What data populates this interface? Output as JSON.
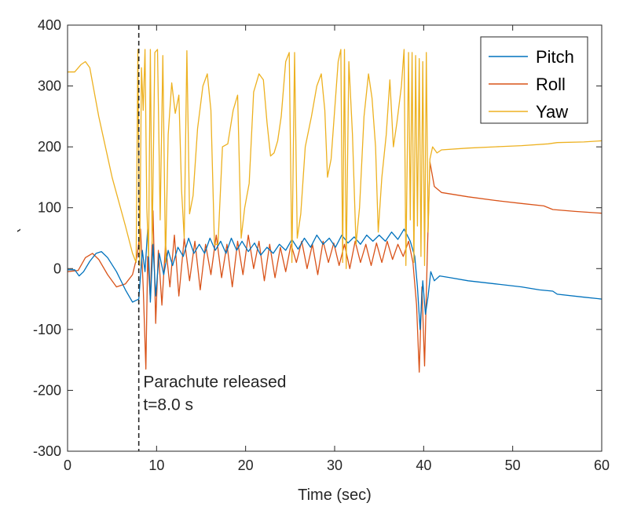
{
  "chart_data": {
    "type": "line",
    "title": "",
    "xlabel": "Time (sec)",
    "ylabel": "Angle (deg)",
    "xlim": [
      0,
      60
    ],
    "ylim": [
      -300,
      400
    ],
    "xticks": [
      0,
      10,
      20,
      30,
      40,
      50,
      60
    ],
    "yticks": [
      -300,
      -200,
      -100,
      0,
      100,
      200,
      300,
      400
    ],
    "xtick_labels": [
      "0",
      "10",
      "20",
      "30",
      "40",
      "50",
      "60"
    ],
    "ytick_labels": [
      "-300",
      "-200",
      "-100",
      "0",
      "100",
      "200",
      "300",
      "400"
    ],
    "grid": false,
    "legend_position": "top-right",
    "series": [
      {
        "name": "Pitch",
        "color": "#0072BD",
        "points": [
          [
            0,
            -2
          ],
          [
            0.8,
            -2
          ],
          [
            1.3,
            -12
          ],
          [
            1.8,
            -5
          ],
          [
            2.5,
            12
          ],
          [
            3.2,
            25
          ],
          [
            3.8,
            28
          ],
          [
            4.5,
            18
          ],
          [
            5.5,
            -5
          ],
          [
            6.5,
            -35
          ],
          [
            7.3,
            -55
          ],
          [
            8,
            -50
          ],
          [
            8.4,
            30
          ],
          [
            8.7,
            -5
          ],
          [
            9.0,
            65
          ],
          [
            9.3,
            -55
          ],
          [
            9.6,
            40
          ],
          [
            9.9,
            -45
          ],
          [
            10.3,
            25
          ],
          [
            10.8,
            -10
          ],
          [
            11.3,
            30
          ],
          [
            11.8,
            5
          ],
          [
            12.4,
            35
          ],
          [
            13,
            20
          ],
          [
            13.6,
            50
          ],
          [
            14.2,
            25
          ],
          [
            14.8,
            40
          ],
          [
            15.4,
            25
          ],
          [
            16,
            50
          ],
          [
            16.6,
            30
          ],
          [
            17.2,
            45
          ],
          [
            17.8,
            25
          ],
          [
            18.4,
            50
          ],
          [
            19,
            30
          ],
          [
            19.6,
            45
          ],
          [
            20.3,
            28
          ],
          [
            21,
            42
          ],
          [
            21.7,
            22
          ],
          [
            22.4,
            35
          ],
          [
            23.1,
            25
          ],
          [
            23.8,
            40
          ],
          [
            24.5,
            30
          ],
          [
            25.2,
            48
          ],
          [
            25.9,
            32
          ],
          [
            26.6,
            50
          ],
          [
            27.3,
            35
          ],
          [
            28,
            55
          ],
          [
            28.7,
            40
          ],
          [
            29.4,
            50
          ],
          [
            30.1,
            35
          ],
          [
            30.8,
            55
          ],
          [
            31.5,
            42
          ],
          [
            32.2,
            52
          ],
          [
            32.9,
            40
          ],
          [
            33.6,
            55
          ],
          [
            34.3,
            45
          ],
          [
            35,
            55
          ],
          [
            35.7,
            45
          ],
          [
            36.4,
            60
          ],
          [
            37.1,
            48
          ],
          [
            37.8,
            65
          ],
          [
            38.5,
            45
          ],
          [
            39,
            20
          ],
          [
            39.3,
            -30
          ],
          [
            39.6,
            -100
          ],
          [
            39.9,
            -20
          ],
          [
            40.2,
            -75
          ],
          [
            40.5,
            -45
          ],
          [
            40.8,
            -5
          ],
          [
            41.2,
            -20
          ],
          [
            41.8,
            -12
          ],
          [
            43,
            -15
          ],
          [
            45,
            -20
          ],
          [
            48,
            -25
          ],
          [
            51,
            -30
          ],
          [
            53,
            -35
          ],
          [
            54.5,
            -37
          ],
          [
            55,
            -42
          ],
          [
            58,
            -47
          ],
          [
            60,
            -50
          ]
        ]
      },
      {
        "name": "Roll",
        "color": "#D95319",
        "points": [
          [
            0,
            -5
          ],
          [
            1.2,
            -3
          ],
          [
            2,
            18
          ],
          [
            2.8,
            25
          ],
          [
            3.5,
            15
          ],
          [
            4.5,
            -10
          ],
          [
            5.5,
            -30
          ],
          [
            6.5,
            -25
          ],
          [
            7.3,
            -10
          ],
          [
            7.8,
            20
          ],
          [
            8.2,
            65
          ],
          [
            8.5,
            -30
          ],
          [
            8.8,
            -165
          ],
          [
            9.0,
            20
          ],
          [
            9.3,
            -50
          ],
          [
            9.6,
            95
          ],
          [
            9.9,
            -90
          ],
          [
            10.2,
            30
          ],
          [
            10.6,
            -60
          ],
          [
            11,
            40
          ],
          [
            11.5,
            -30
          ],
          [
            12,
            55
          ],
          [
            12.5,
            -45
          ],
          [
            13.1,
            50
          ],
          [
            13.7,
            -20
          ],
          [
            14.3,
            45
          ],
          [
            14.9,
            -35
          ],
          [
            15.5,
            40
          ],
          [
            16.1,
            -10
          ],
          [
            16.7,
            55
          ],
          [
            17.3,
            -15
          ],
          [
            17.9,
            40
          ],
          [
            18.5,
            -30
          ],
          [
            19.1,
            45
          ],
          [
            19.7,
            -10
          ],
          [
            20.3,
            55
          ],
          [
            20.9,
            0
          ],
          [
            21.5,
            45
          ],
          [
            22.1,
            -20
          ],
          [
            22.7,
            40
          ],
          [
            23.3,
            -15
          ],
          [
            23.9,
            35
          ],
          [
            24.5,
            -5
          ],
          [
            25.1,
            40
          ],
          [
            25.7,
            10
          ],
          [
            26.3,
            45
          ],
          [
            26.9,
            0
          ],
          [
            27.5,
            40
          ],
          [
            28.1,
            -10
          ],
          [
            28.7,
            45
          ],
          [
            29.3,
            10
          ],
          [
            29.9,
            42
          ],
          [
            30.5,
            5
          ],
          [
            31.1,
            40
          ],
          [
            31.7,
            0
          ],
          [
            32.3,
            45
          ],
          [
            32.9,
            10
          ],
          [
            33.5,
            40
          ],
          [
            34.1,
            5
          ],
          [
            34.7,
            42
          ],
          [
            35.3,
            10
          ],
          [
            35.9,
            45
          ],
          [
            36.5,
            15
          ],
          [
            37.1,
            40
          ],
          [
            37.7,
            20
          ],
          [
            38.3,
            45
          ],
          [
            38.8,
            10
          ],
          [
            39.2,
            -60
          ],
          [
            39.5,
            -170
          ],
          [
            39.8,
            -30
          ],
          [
            40.1,
            -160
          ],
          [
            40.4,
            20
          ],
          [
            40.7,
            175
          ],
          [
            41.2,
            135
          ],
          [
            42,
            125
          ],
          [
            45,
            118
          ],
          [
            48,
            112
          ],
          [
            51,
            107
          ],
          [
            53.5,
            103
          ],
          [
            54.5,
            97
          ],
          [
            57,
            94
          ],
          [
            60,
            91
          ]
        ]
      },
      {
        "name": "Yaw",
        "color": "#EDB120",
        "points": [
          [
            0,
            323
          ],
          [
            0.8,
            323
          ],
          [
            1.5,
            335
          ],
          [
            2.0,
            340
          ],
          [
            2.5,
            330
          ],
          [
            3.5,
            250
          ],
          [
            5,
            150
          ],
          [
            6.5,
            70
          ],
          [
            7.3,
            25
          ],
          [
            7.7,
            10
          ],
          [
            7.9,
            360
          ],
          [
            8.1,
            5
          ],
          [
            8.3,
            330
          ],
          [
            8.5,
            260
          ],
          [
            8.7,
            360
          ],
          [
            8.9,
            100
          ],
          [
            9.1,
            20
          ],
          [
            9.3,
            360
          ],
          [
            9.5,
            40
          ],
          [
            9.8,
            355
          ],
          [
            10.1,
            360
          ],
          [
            10.4,
            80
          ],
          [
            10.7,
            350
          ],
          [
            11,
            10
          ],
          [
            11.3,
            220
          ],
          [
            11.7,
            305
          ],
          [
            12.1,
            255
          ],
          [
            12.5,
            285
          ],
          [
            12.8,
            130
          ],
          [
            13.1,
            50
          ],
          [
            13.4,
            358
          ],
          [
            13.7,
            90
          ],
          [
            14.1,
            120
          ],
          [
            14.6,
            230
          ],
          [
            15.2,
            300
          ],
          [
            15.7,
            320
          ],
          [
            16.1,
            260
          ],
          [
            16.5,
            40
          ],
          [
            16.9,
            40
          ],
          [
            17.4,
            200
          ],
          [
            18,
            205
          ],
          [
            18.6,
            260
          ],
          [
            19.1,
            285
          ],
          [
            19.5,
            50
          ],
          [
            19.9,
            100
          ],
          [
            20.4,
            140
          ],
          [
            20.9,
            290
          ],
          [
            21.5,
            320
          ],
          [
            22,
            310
          ],
          [
            22.4,
            240
          ],
          [
            22.8,
            185
          ],
          [
            23.2,
            190
          ],
          [
            23.6,
            210
          ],
          [
            24,
            250
          ],
          [
            24.5,
            340
          ],
          [
            24.9,
            355
          ],
          [
            25.2,
            10
          ],
          [
            25.5,
            355
          ],
          [
            25.8,
            50
          ],
          [
            26.2,
            90
          ],
          [
            26.7,
            200
          ],
          [
            27.4,
            250
          ],
          [
            28,
            300
          ],
          [
            28.5,
            320
          ],
          [
            28.9,
            260
          ],
          [
            29.2,
            150
          ],
          [
            29.6,
            180
          ],
          [
            30,
            260
          ],
          [
            30.4,
            340
          ],
          [
            30.7,
            360
          ],
          [
            30.9,
            10
          ],
          [
            31.1,
            360
          ],
          [
            31.3,
            0
          ],
          [
            31.6,
            340
          ],
          [
            32,
            220
          ],
          [
            32.4,
            40
          ],
          [
            32.8,
            100
          ],
          [
            33.3,
            250
          ],
          [
            33.8,
            320
          ],
          [
            34.2,
            280
          ],
          [
            34.6,
            200
          ],
          [
            34.9,
            60
          ],
          [
            35.3,
            150
          ],
          [
            35.8,
            220
          ],
          [
            36.2,
            310
          ],
          [
            36.6,
            200
          ],
          [
            37.0,
            240
          ],
          [
            37.5,
            300
          ],
          [
            37.8,
            360
          ],
          [
            38.0,
            5
          ],
          [
            38.3,
            355
          ],
          [
            38.5,
            80
          ],
          [
            38.7,
            355
          ],
          [
            38.9,
            10
          ],
          [
            39.1,
            350
          ],
          [
            39.3,
            70
          ],
          [
            39.5,
            345
          ],
          [
            39.7,
            20
          ],
          [
            39.9,
            340
          ],
          [
            40.1,
            5
          ],
          [
            40.3,
            355
          ],
          [
            40.5,
            60
          ],
          [
            40.7,
            180
          ],
          [
            41.0,
            200
          ],
          [
            41.5,
            190
          ],
          [
            42,
            195
          ],
          [
            45,
            198
          ],
          [
            48,
            200
          ],
          [
            51,
            202
          ],
          [
            54,
            205
          ],
          [
            55,
            207
          ],
          [
            58,
            208
          ],
          [
            60,
            210
          ]
        ]
      }
    ],
    "annotations": [
      {
        "type": "vline",
        "x": 8.0,
        "style": "dashed",
        "color": "#262626"
      },
      {
        "type": "text",
        "x": 8.5,
        "y": -195,
        "text": "Parachute released"
      },
      {
        "type": "text",
        "x": 8.5,
        "y": -232,
        "text": "t=8.0 s"
      }
    ]
  }
}
